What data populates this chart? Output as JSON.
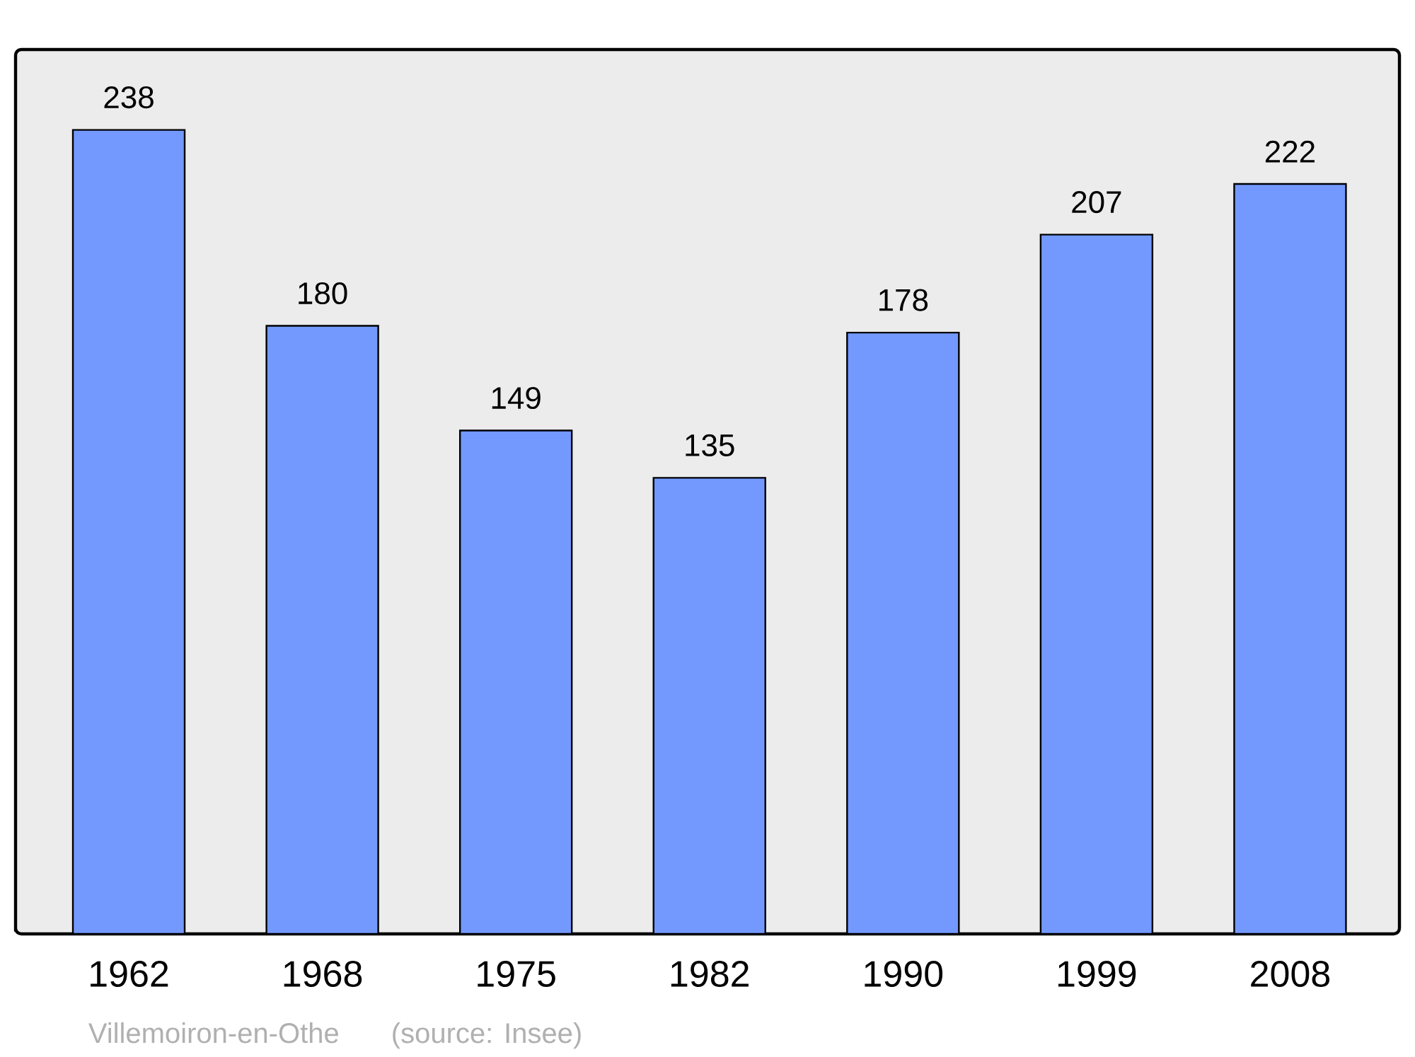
{
  "chart_data": {
    "type": "bar",
    "categories": [
      "1962",
      "1968",
      "1975",
      "1982",
      "1990",
      "1999",
      "2008"
    ],
    "values": [
      238,
      180,
      149,
      135,
      178,
      207,
      222
    ],
    "color": "#7399ff",
    "data_labels": true,
    "annotations": [
      "Villemoiron-en-Othe",
      "(source: Insee)"
    ]
  }
}
